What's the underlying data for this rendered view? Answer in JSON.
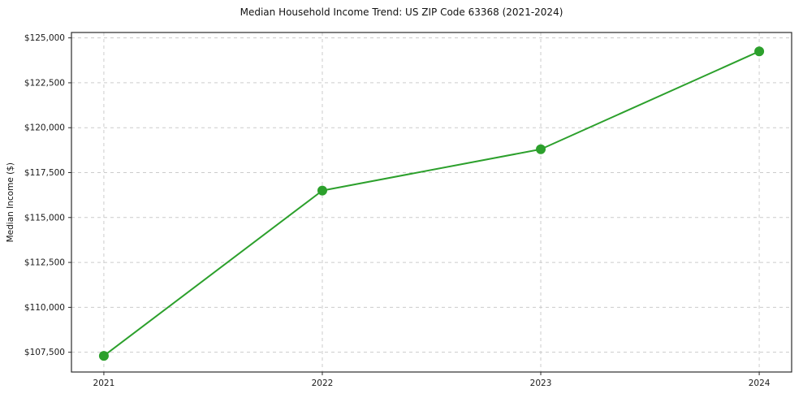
{
  "chart_data": {
    "type": "line",
    "title": "Median Household Income Trend: US ZIP Code 63368 (2021-2024)",
    "xlabel": "",
    "ylabel": "Median Income ($)",
    "categories": [
      "2021",
      "2022",
      "2023",
      "2024"
    ],
    "series": [
      {
        "name": "Median Household Income",
        "values": [
          107300,
          116500,
          118800,
          124250
        ],
        "color": "#2ca02c"
      }
    ],
    "ylim": [
      106400,
      125300
    ],
    "yticks": [
      107500,
      110000,
      112500,
      115000,
      117500,
      120000,
      122500,
      125000
    ],
    "ytick_prefix": "$",
    "grid": true,
    "grid_color": "#cccccc",
    "axis_color": "#2b2b2b",
    "tick_label_color": "#1a1a1a",
    "legend_position": "none",
    "line_width": 2,
    "marker_radius": 6
  }
}
